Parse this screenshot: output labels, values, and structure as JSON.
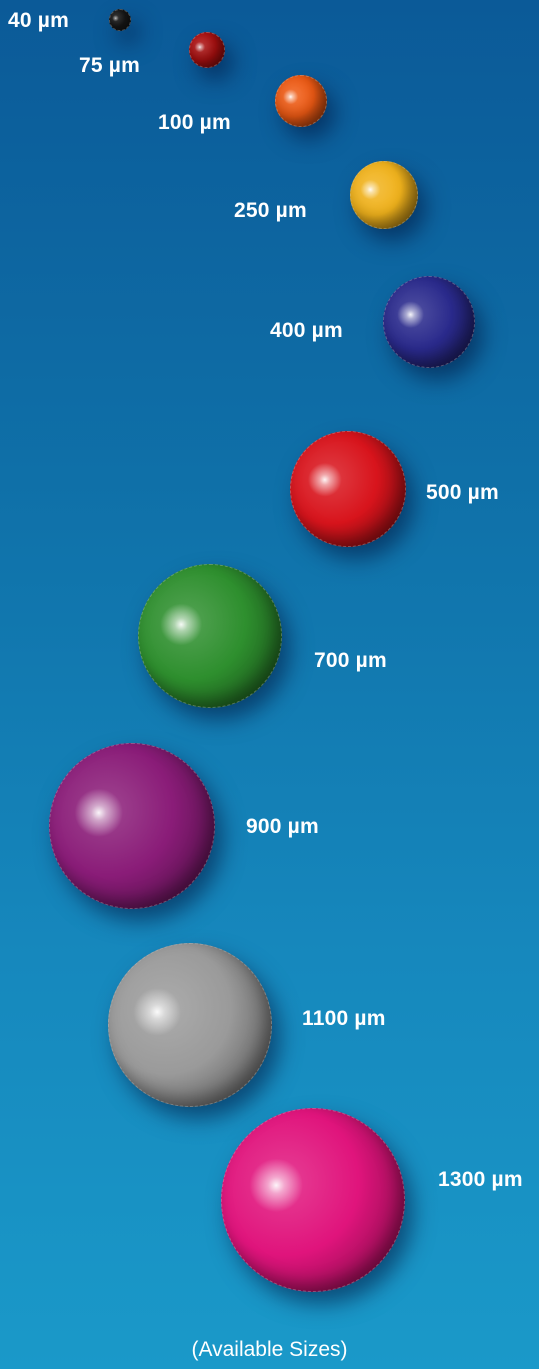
{
  "beads": [
    {
      "label": "40 µm",
      "color": "#1a1a1a"
    },
    {
      "label": "75 µm",
      "color": "#b01010"
    },
    {
      "label": "100 µm",
      "color": "#ee5a14"
    },
    {
      "label": "250 µm",
      "color": "#f0b21c"
    },
    {
      "label": "400 µm",
      "color": "#2a2a8c"
    },
    {
      "label": "500 µm",
      "color": "#d8141c"
    },
    {
      "label": "700 µm",
      "color": "#2e8f2e"
    },
    {
      "label": "900 µm",
      "color": "#8a1c78"
    },
    {
      "label": "1100 µm",
      "color": "#9a9a9a"
    },
    {
      "label": "1300 µm",
      "color": "#e0147c"
    }
  ],
  "caption": "(Available Sizes)"
}
